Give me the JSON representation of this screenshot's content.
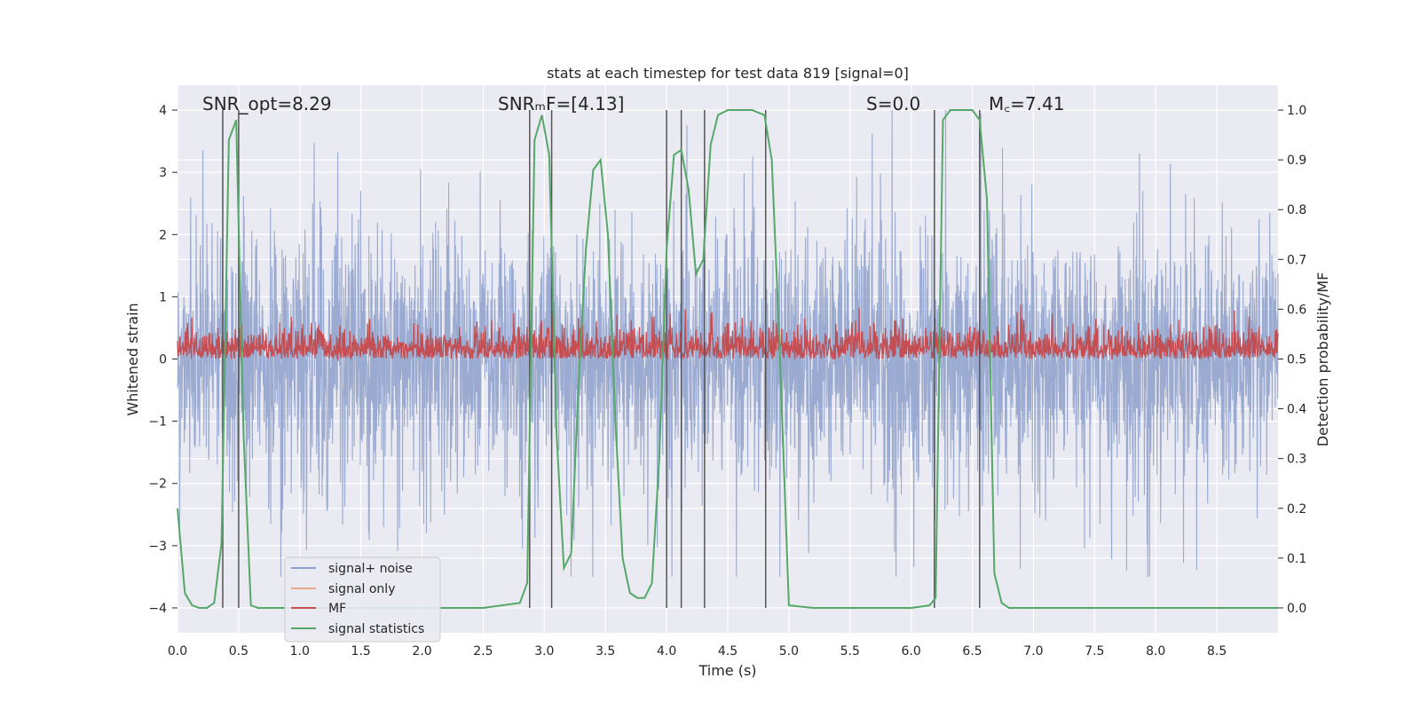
{
  "chart_data": {
    "type": "line",
    "title": "stats at each timestep for test data 819 [signal=0]",
    "xlabel": "Time (s)",
    "ylabel": "Whitened strain",
    "y2label": "Detection probability/MF",
    "xlim": [
      0.0,
      9.0
    ],
    "ylim": [
      -4.4,
      4.4
    ],
    "y2lim": [
      -0.05,
      1.05
    ],
    "x_ticks": [
      0.0,
      0.5,
      1.0,
      1.5,
      2.0,
      2.5,
      3.0,
      3.5,
      4.0,
      4.5,
      5.0,
      5.5,
      6.0,
      6.5,
      7.0,
      7.5,
      8.0,
      8.5
    ],
    "x_tick_labels": [
      "0.0",
      "0.5",
      "1.0",
      "1.5",
      "2.0",
      "2.5",
      "3.0",
      "3.5",
      "4.0",
      "4.5",
      "5.0",
      "5.5",
      "6.0",
      "6.5",
      "7.0",
      "7.5",
      "8.0",
      "8.5"
    ],
    "y_ticks": [
      4,
      3,
      2,
      1,
      0,
      -1,
      -2,
      -3,
      -4
    ],
    "y_tick_labels": [
      "4",
      "3",
      "2",
      "1",
      "0",
      "−1",
      "−2",
      "−3",
      "−4"
    ],
    "y2_ticks": [
      1.0,
      0.9,
      0.8,
      0.7,
      0.6,
      0.5,
      0.4,
      0.3,
      0.2,
      0.1,
      0.0
    ],
    "y2_tick_labels": [
      "1.0",
      "0.9",
      "0.8",
      "0.7",
      "0.6",
      "0.5",
      "0.4",
      "0.3",
      "0.2",
      "0.1",
      "0.0"
    ],
    "grid": true,
    "legend_position": "lower-left",
    "annotations": [
      {
        "text": "SNR_opt=8.29",
        "x": 0.2
      },
      {
        "text": "SNRₘF=[4.13]",
        "x": 2.6
      },
      {
        "text": "S=0.0",
        "x": 5.6
      },
      {
        "text": "M꜀=7.41",
        "x": 6.6
      }
    ],
    "vlines": [
      0.37,
      0.5,
      2.88,
      3.06,
      4.0,
      4.12,
      4.31,
      4.81,
      6.19,
      6.56
    ],
    "series": [
      {
        "name": "signal+ noise",
        "color": "#8c9fca",
        "kind": "noise",
        "amplitude_range": [
          -3.5,
          4.0
        ]
      },
      {
        "name": "signal only",
        "color": "#e8a98a",
        "kind": "none"
      },
      {
        "name": "MF",
        "color": "#c44e52",
        "kind": "mf",
        "y2_range": [
          0.5,
          0.61
        ]
      },
      {
        "name": "signal statistics",
        "color": "#55a868",
        "kind": "line_y2",
        "x": [
          0.0,
          0.06,
          0.12,
          0.18,
          0.24,
          0.3,
          0.36,
          0.42,
          0.48,
          0.54,
          0.6,
          0.66,
          0.72,
          0.8,
          1.0,
          1.5,
          2.0,
          2.5,
          2.8,
          2.86,
          2.92,
          2.98,
          3.04,
          3.1,
          3.16,
          3.22,
          3.28,
          3.34,
          3.4,
          3.46,
          3.52,
          3.58,
          3.64,
          3.7,
          3.76,
          3.82,
          3.88,
          3.94,
          4.0,
          4.06,
          4.12,
          4.18,
          4.24,
          4.3,
          4.36,
          4.42,
          4.5,
          4.6,
          4.7,
          4.8,
          4.86,
          4.92,
          5.0,
          5.2,
          5.5,
          6.0,
          6.15,
          6.2,
          6.26,
          6.32,
          6.4,
          6.5,
          6.56,
          6.62,
          6.68,
          6.74,
          6.8,
          7.0,
          7.5,
          8.0,
          8.5,
          9.0
        ],
        "y": [
          0.2,
          0.03,
          0.005,
          0.0,
          0.0,
          0.01,
          0.13,
          0.94,
          0.98,
          0.35,
          0.005,
          0.0,
          0.0,
          0.0,
          0.0,
          0.0,
          0.0,
          0.0,
          0.01,
          0.05,
          0.94,
          0.99,
          0.91,
          0.35,
          0.08,
          0.11,
          0.45,
          0.72,
          0.88,
          0.9,
          0.75,
          0.38,
          0.1,
          0.03,
          0.02,
          0.02,
          0.05,
          0.3,
          0.72,
          0.91,
          0.92,
          0.84,
          0.67,
          0.7,
          0.93,
          0.99,
          1.0,
          1.0,
          1.0,
          0.99,
          0.9,
          0.55,
          0.005,
          0.0,
          0.0,
          0.0,
          0.005,
          0.02,
          0.98,
          1.0,
          1.0,
          1.0,
          0.98,
          0.82,
          0.07,
          0.01,
          0.0,
          0.0,
          0.0,
          0.0,
          0.0,
          0.0
        ]
      }
    ]
  }
}
